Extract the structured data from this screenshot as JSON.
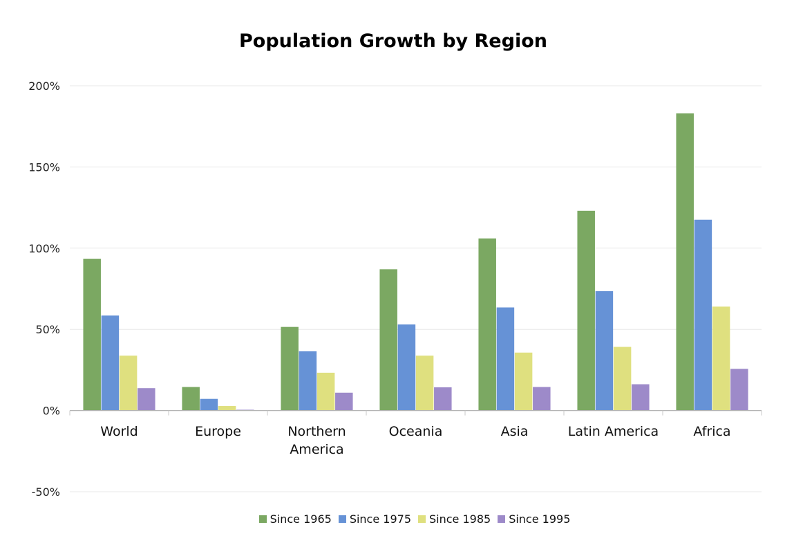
{
  "chart_data": {
    "type": "bar",
    "title": "Population Growth by Region",
    "xlabel": "",
    "ylabel": "",
    "categories": [
      "World",
      "Europe",
      "Northern America",
      "Oceania",
      "Asia",
      "Latin America",
      "Africa"
    ],
    "category_lines": [
      [
        "World"
      ],
      [
        "Europe"
      ],
      [
        "Northern",
        "America"
      ],
      [
        "Oceania"
      ],
      [
        "Asia"
      ],
      [
        "Latin America"
      ],
      [
        "Africa"
      ]
    ],
    "series": [
      {
        "name": "Since 1965",
        "color": "#7ba862",
        "values": [
          93.5,
          14.5,
          51.5,
          87,
          106,
          123,
          183
        ]
      },
      {
        "name": "Since 1975",
        "color": "#6692d6",
        "values": [
          58.5,
          7.2,
          36.5,
          53,
          63.5,
          73.5,
          117.5
        ]
      },
      {
        "name": "Since 1985",
        "color": "#dfe07f",
        "values": [
          33.8,
          2.8,
          23.3,
          33.8,
          35.7,
          39.2,
          64
        ]
      },
      {
        "name": "Since 1995",
        "color": "#9d8ac9",
        "values": [
          13.8,
          0.5,
          11,
          14.3,
          14.5,
          16.2,
          25.7
        ]
      }
    ],
    "ylim": [
      -50,
      200
    ],
    "yticks": [
      200,
      150,
      100,
      50,
      0,
      -50
    ],
    "ytick_labels": [
      "200%",
      "150%",
      "100%",
      "50%",
      "0%",
      "-50%"
    ],
    "grid": true,
    "legend_position": "bottom"
  }
}
